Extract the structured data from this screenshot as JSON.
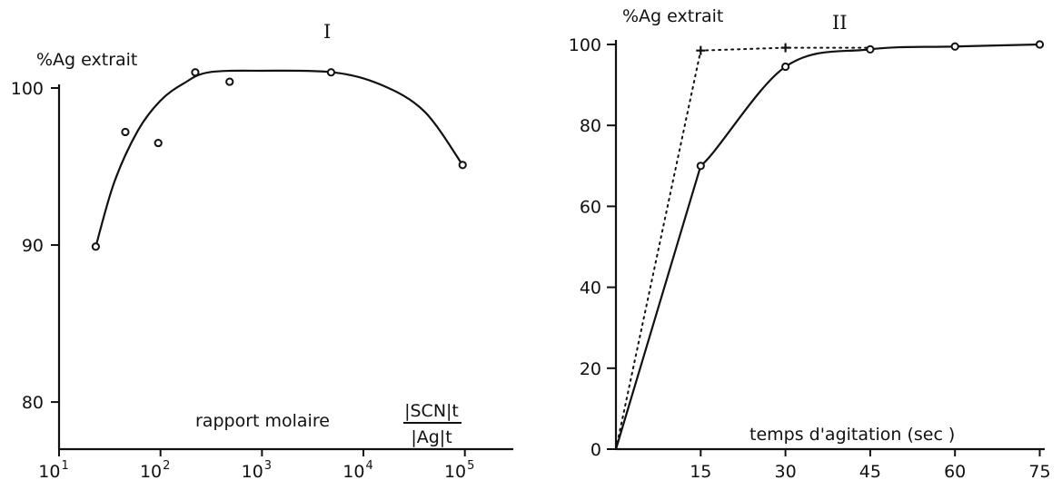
{
  "chart_data": [
    {
      "type": "scatter",
      "panel_label": "I",
      "ylabel": "%Ag extrait",
      "xlabel": "rapport molaire",
      "xlabel_fraction": {
        "numerator": "|SCN|t",
        "denominator": "|Ag|t"
      },
      "x_scale": "log",
      "xlim": [
        10,
        300000
      ],
      "ylim": [
        77,
        100
      ],
      "x_ticks": [
        {
          "value": 10,
          "base": "10",
          "exp": "1"
        },
        {
          "value": 100,
          "base": "10",
          "exp": "2"
        },
        {
          "value": 1000,
          "base": "10",
          "exp": "3"
        },
        {
          "value": 10000,
          "base": "10",
          "exp": "4"
        },
        {
          "value": 100000,
          "base": "10",
          "exp": "5"
        }
      ],
      "y_ticks": [
        {
          "value": 80,
          "label": "80"
        },
        {
          "value": 90,
          "label": "90"
        },
        {
          "value": 100,
          "label": "100"
        }
      ],
      "points": [
        {
          "x": 23,
          "y": 89.9
        },
        {
          "x": 45,
          "y": 97.2
        },
        {
          "x": 95,
          "y": 96.5
        },
        {
          "x": 220,
          "y": 101.0
        },
        {
          "x": 480,
          "y": 100.4
        },
        {
          "x": 4800,
          "y": 101.0
        },
        {
          "x": 95000,
          "y": 95.1
        }
      ],
      "curve": [
        {
          "x": 23,
          "y": 89.9
        },
        {
          "x": 35,
          "y": 94.0
        },
        {
          "x": 60,
          "y": 97.3
        },
        {
          "x": 100,
          "y": 99.2
        },
        {
          "x": 170,
          "y": 100.3
        },
        {
          "x": 300,
          "y": 101.0
        },
        {
          "x": 1000,
          "y": 101.1
        },
        {
          "x": 5000,
          "y": 101.0
        },
        {
          "x": 15000,
          "y": 100.2
        },
        {
          "x": 40000,
          "y": 98.5
        },
        {
          "x": 95000,
          "y": 95.1
        }
      ]
    },
    {
      "type": "line",
      "panel_label": "II",
      "ylabel": "%Ag extrait",
      "xlabel": "temps d'agitation (sec )",
      "xlim": [
        0,
        80
      ],
      "ylim": [
        0,
        100
      ],
      "x_ticks": [
        15,
        30,
        45,
        60,
        75
      ],
      "y_ticks": [
        0,
        20,
        40,
        60,
        80,
        100
      ],
      "series": [
        {
          "style": "solid-circles",
          "points": [
            {
              "x": 0,
              "y": 0
            },
            {
              "x": 15,
              "y": 70
            },
            {
              "x": 30,
              "y": 94.5
            },
            {
              "x": 45,
              "y": 98.8
            },
            {
              "x": 60,
              "y": 99.5
            },
            {
              "x": 75,
              "y": 100
            }
          ]
        },
        {
          "style": "dotted-crosses",
          "points": [
            {
              "x": 0,
              "y": 0
            },
            {
              "x": 15,
              "y": 98.5
            },
            {
              "x": 30,
              "y": 99.2
            },
            {
              "x": 45,
              "y": 99.2
            }
          ]
        }
      ]
    }
  ]
}
